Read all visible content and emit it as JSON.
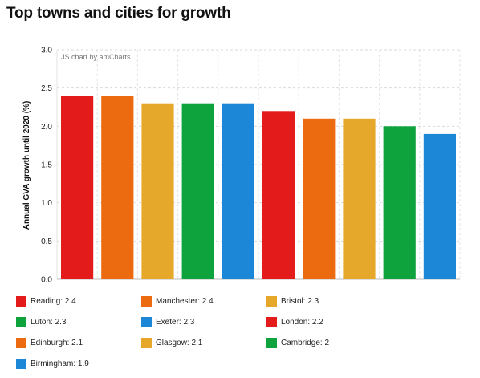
{
  "header": {
    "title": "Top towns and cities for growth"
  },
  "chart_data": {
    "type": "bar",
    "credit": "JS chart by amCharts",
    "ylabel": "Annual GVA growth until 2020 (%)",
    "xlabel": "",
    "ylim": [
      0,
      3
    ],
    "yticks": [
      "0.0",
      "0.5",
      "1.0",
      "1.5",
      "2.0",
      "2.5",
      "3.0"
    ],
    "grid": true,
    "legend_position": "bottom",
    "categories": [
      "Reading",
      "Manchester",
      "Bristol",
      "Luton",
      "Exeter",
      "London",
      "Edinburgh",
      "Glasgow",
      "Cambridge",
      "Birmingham"
    ],
    "values": [
      2.4,
      2.4,
      2.3,
      2.3,
      2.3,
      2.2,
      2.1,
      2.1,
      2.0,
      1.9
    ],
    "colors": [
      "#e31b1b",
      "#ec6a10",
      "#e6a82a",
      "#0fa33d",
      "#1c87d7",
      "#e31b1b",
      "#ec6a10",
      "#e6a82a",
      "#0fa33d",
      "#1c87d7"
    ],
    "legend": [
      "Reading: 2.4",
      "Manchester: 2.4",
      "Bristol: 2.3",
      "Luton: 2.3",
      "Exeter: 2.3",
      "London: 2.2",
      "Edinburgh: 2.1",
      "Glasgow: 2.1",
      "Cambridge: 2",
      "Birmingham: 1.9"
    ]
  }
}
